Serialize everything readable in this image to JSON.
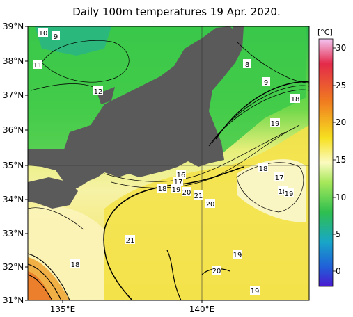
{
  "title": "Daily 100m temperatures 19 Apr. 2020.",
  "lat_labels": [
    "39°N",
    "38°N",
    "37°N",
    "36°N",
    "35°N",
    "34°N",
    "33°N",
    "32°N",
    "31°N"
  ],
  "lon_labels": [
    "135°E",
    "140°E"
  ],
  "colorbar": {
    "unit": "[°C]",
    "ticks": [
      "30",
      "25",
      "20",
      "15",
      "10",
      "5",
      "0"
    ]
  },
  "contour_labels": [
    "10",
    "9",
    "11",
    "12",
    "8",
    "9",
    "18",
    "19",
    "18",
    "17",
    "18",
    "19",
    "16",
    "17",
    "18",
    "19",
    "20",
    "21",
    "20",
    "21",
    "19",
    "20",
    "19",
    "18"
  ],
  "colors": {
    "land": "#5a5a5a",
    "grid": "#333333"
  }
}
